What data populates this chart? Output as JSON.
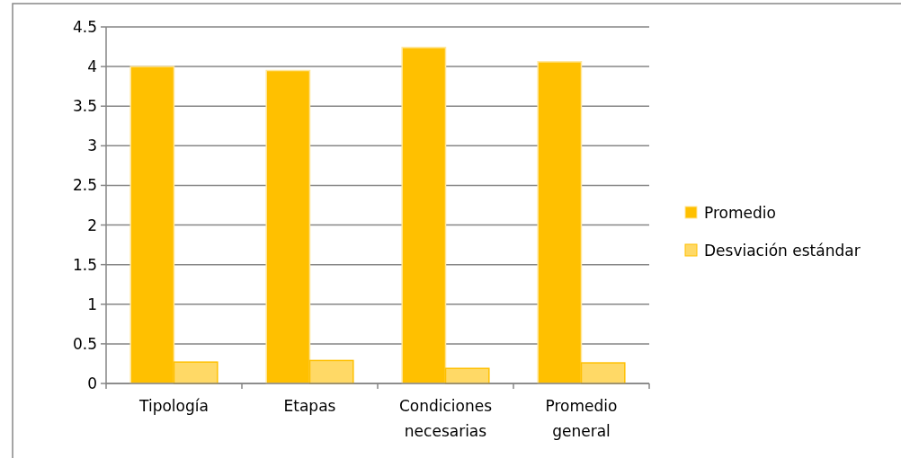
{
  "chart_data": {
    "type": "bar",
    "categories": [
      "Tipología",
      "Etapas",
      "Condiciones necesarias",
      "Promedio general"
    ],
    "series": [
      {
        "name": "Promedio",
        "color": "#ffc000",
        "values": [
          4.0,
          3.95,
          4.24,
          4.06
        ]
      },
      {
        "name": "Desviación estándar",
        "color": "#ffd966",
        "values": [
          0.27,
          0.29,
          0.19,
          0.26
        ]
      }
    ],
    "ylim": [
      0,
      4.5
    ],
    "yticks": [
      0,
      0.5,
      1,
      1.5,
      2,
      2.5,
      3,
      3.5,
      4,
      4.5
    ],
    "grid": "y",
    "legend": "right"
  }
}
